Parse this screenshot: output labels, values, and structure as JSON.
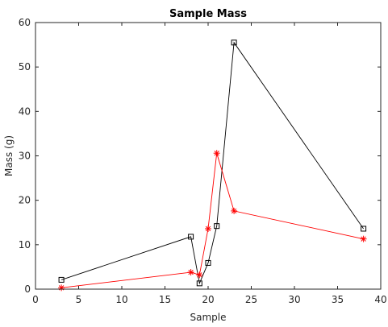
{
  "chart_data": {
    "type": "line",
    "title": "Sample Mass",
    "xlabel": "Sample",
    "ylabel": "Mass (g)",
    "xlim": [
      0,
      40
    ],
    "ylim": [
      0,
      60
    ],
    "xticks": [
      0,
      5,
      10,
      15,
      20,
      25,
      30,
      35,
      40
    ],
    "yticks": [
      0,
      10,
      20,
      30,
      40,
      50,
      60
    ],
    "grid": false,
    "legend": "none",
    "series": [
      {
        "color": "#000000",
        "marker": "square",
        "points": [
          {
            "x": 3,
            "y": 2.1
          },
          {
            "x": 18,
            "y": 11.8
          },
          {
            "x": 19,
            "y": 1.3
          },
          {
            "x": 20,
            "y": 5.9
          },
          {
            "x": 21,
            "y": 14.2
          },
          {
            "x": 23,
            "y": 55.5
          },
          {
            "x": 38,
            "y": 13.6
          }
        ]
      },
      {
        "color": "#ff0000",
        "marker": "asterisk",
        "points": [
          {
            "x": 3,
            "y": 0.3
          },
          {
            "x": 18,
            "y": 3.8
          },
          {
            "x": 19,
            "y": 3.2
          },
          {
            "x": 20,
            "y": 13.6
          },
          {
            "x": 21,
            "y": 30.6
          },
          {
            "x": 23,
            "y": 17.6
          },
          {
            "x": 38,
            "y": 11.3
          }
        ]
      }
    ]
  }
}
